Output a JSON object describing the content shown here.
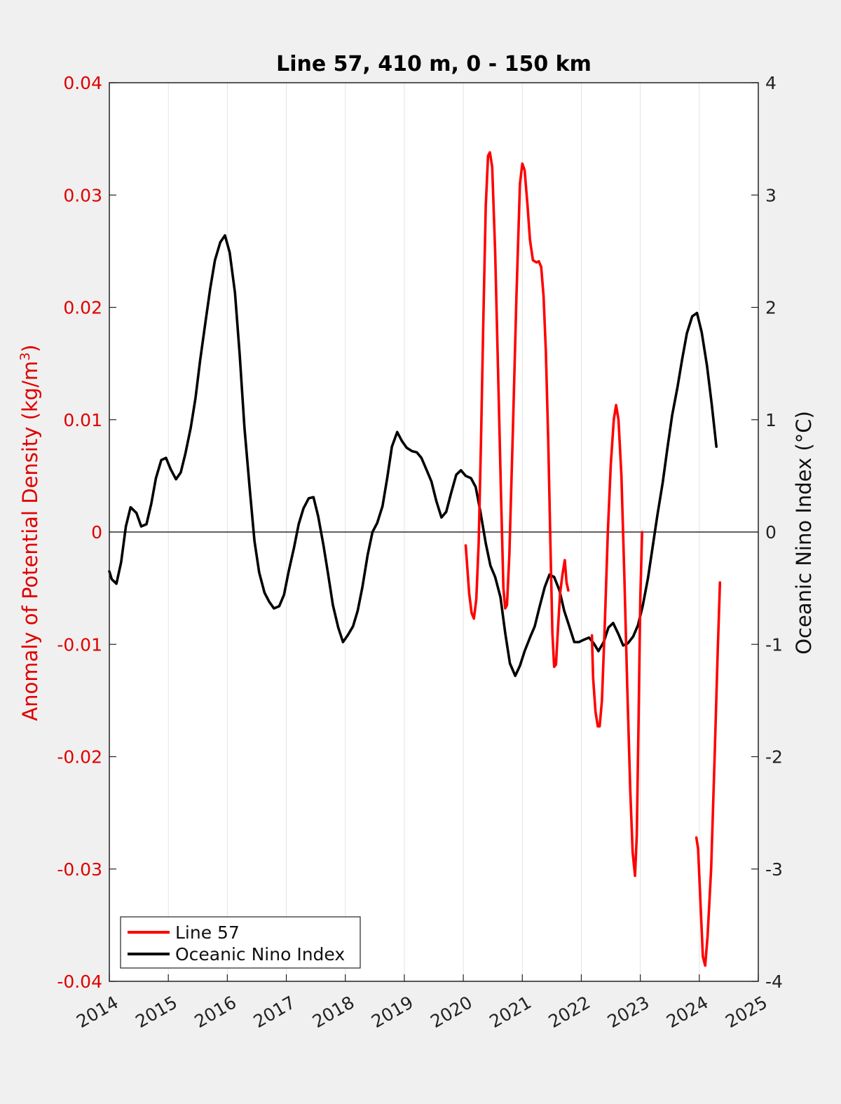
{
  "chart_data": {
    "type": "line",
    "title": "Line 57, 410 m, 0 - 150 km",
    "ylabel_left_main": "Anomaly of Potential Density (kg/m",
    "ylabel_left_sup": "3",
    "ylabel_left_end": ")",
    "ylabel_right": "Oceanic Nino Index (°C)",
    "xlim": [
      2014,
      2025
    ],
    "ylim_left": [
      -0.04,
      0.04
    ],
    "ylim_right": [
      -4,
      4
    ],
    "x_ticks": [
      "2014",
      "2015",
      "2016",
      "2017",
      "2018",
      "2019",
      "2020",
      "2021",
      "2022",
      "2023",
      "2024",
      "2025"
    ],
    "y_left_ticks": [
      "-0.04",
      "-0.03",
      "-0.02",
      "-0.01",
      "0",
      "0.01",
      "0.02",
      "0.03",
      "0.04"
    ],
    "y_right_ticks": [
      "-4",
      "-3",
      "-2",
      "-1",
      "0",
      "1",
      "2",
      "3",
      "4"
    ],
    "grid": "vertical",
    "zero_line": true,
    "legend": {
      "position": "bottom-left"
    },
    "series": [
      {
        "name": "Line 57",
        "axis": "left",
        "color": "#ff0000",
        "segments": [
          [
            [
              2020.04,
              -0.0012
            ],
            [
              2020.1,
              -0.0055
            ],
            [
              2020.14,
              -0.0072
            ],
            [
              2020.18,
              -0.0077
            ],
            [
              2020.22,
              -0.006
            ],
            [
              2020.26,
              -0.001
            ],
            [
              2020.3,
              0.008
            ],
            [
              2020.34,
              0.019
            ],
            [
              2020.38,
              0.029
            ],
            [
              2020.42,
              0.0335
            ],
            [
              2020.45,
              0.0338
            ],
            [
              2020.49,
              0.0325
            ],
            [
              2020.54,
              0.025
            ],
            [
              2020.59,
              0.014
            ],
            [
              2020.64,
              0.003
            ],
            [
              2020.68,
              -0.005
            ],
            [
              2020.71,
              -0.0068
            ],
            [
              2020.74,
              -0.0065
            ],
            [
              2020.78,
              -0.002
            ],
            [
              2020.84,
              0.009
            ],
            [
              2020.9,
              0.021
            ],
            [
              2020.96,
              0.031
            ],
            [
              2021.0,
              0.0328
            ],
            [
              2021.04,
              0.0322
            ],
            [
              2021.09,
              0.029
            ],
            [
              2021.13,
              0.026
            ],
            [
              2021.18,
              0.0242
            ],
            [
              2021.24,
              0.024
            ],
            [
              2021.28,
              0.0241
            ],
            [
              2021.32,
              0.0236
            ],
            [
              2021.36,
              0.021
            ],
            [
              2021.4,
              0.016
            ],
            [
              2021.44,
              0.008
            ],
            [
              2021.48,
              -0.002
            ],
            [
              2021.51,
              -0.009
            ],
            [
              2021.54,
              -0.012
            ],
            [
              2021.57,
              -0.0118
            ],
            [
              2021.6,
              -0.009
            ],
            [
              2021.64,
              -0.0055
            ],
            [
              2021.68,
              -0.0038
            ],
            [
              2021.72,
              -0.0025
            ],
            [
              2021.75,
              -0.0045
            ],
            [
              2021.78,
              -0.0052
            ]
          ],
          [
            [
              2022.18,
              -0.0092
            ],
            [
              2022.2,
              -0.013
            ],
            [
              2022.24,
              -0.016
            ],
            [
              2022.28,
              -0.0173
            ],
            [
              2022.31,
              -0.0173
            ],
            [
              2022.35,
              -0.015
            ],
            [
              2022.4,
              -0.008
            ],
            [
              2022.45,
              0.0
            ],
            [
              2022.5,
              0.006
            ],
            [
              2022.55,
              0.01
            ],
            [
              2022.59,
              0.0113
            ],
            [
              2022.63,
              0.01
            ],
            [
              2022.68,
              0.005
            ],
            [
              2022.73,
              -0.004
            ],
            [
              2022.78,
              -0.014
            ],
            [
              2022.83,
              -0.023
            ],
            [
              2022.87,
              -0.0285
            ],
            [
              2022.91,
              -0.0306
            ],
            [
              2022.94,
              -0.027
            ],
            [
              2022.97,
              -0.017
            ],
            [
              2023.0,
              -0.006
            ],
            [
              2023.03,
              0.0
            ]
          ],
          [
            [
              2023.95,
              -0.0272
            ],
            [
              2023.98,
              -0.0282
            ],
            [
              2024.02,
              -0.033
            ],
            [
              2024.06,
              -0.0378
            ],
            [
              2024.1,
              -0.0386
            ],
            [
              2024.14,
              -0.036
            ],
            [
              2024.2,
              -0.03
            ],
            [
              2024.26,
              -0.02
            ],
            [
              2024.31,
              -0.011
            ],
            [
              2024.35,
              -0.0045
            ]
          ]
        ]
      },
      {
        "name": "Oceanic Nino Index",
        "axis": "right",
        "color": "#000000",
        "segments": [
          [
            [
              2014.0,
              -0.35
            ],
            [
              2014.04,
              -0.42
            ],
            [
              2014.12,
              -0.46
            ],
            [
              2014.2,
              -0.27
            ],
            [
              2014.28,
              0.05
            ],
            [
              2014.36,
              0.22
            ],
            [
              2014.46,
              0.17
            ],
            [
              2014.54,
              0.05
            ],
            [
              2014.63,
              0.07
            ],
            [
              2014.71,
              0.25
            ],
            [
              2014.79,
              0.48
            ],
            [
              2014.88,
              0.64
            ],
            [
              2014.96,
              0.66
            ],
            [
              2015.04,
              0.56
            ],
            [
              2015.13,
              0.47
            ],
            [
              2015.21,
              0.53
            ],
            [
              2015.29,
              0.7
            ],
            [
              2015.38,
              0.93
            ],
            [
              2015.46,
              1.19
            ],
            [
              2015.54,
              1.53
            ],
            [
              2015.63,
              1.87
            ],
            [
              2015.71,
              2.17
            ],
            [
              2015.79,
              2.42
            ],
            [
              2015.88,
              2.58
            ],
            [
              2015.96,
              2.64
            ],
            [
              2016.04,
              2.49
            ],
            [
              2016.13,
              2.13
            ],
            [
              2016.21,
              1.58
            ],
            [
              2016.29,
              0.93
            ],
            [
              2016.38,
              0.38
            ],
            [
              2016.46,
              -0.08
            ],
            [
              2016.54,
              -0.36
            ],
            [
              2016.63,
              -0.54
            ],
            [
              2016.71,
              -0.62
            ],
            [
              2016.79,
              -0.68
            ],
            [
              2016.88,
              -0.66
            ],
            [
              2016.96,
              -0.56
            ],
            [
              2017.04,
              -0.35
            ],
            [
              2017.13,
              -0.14
            ],
            [
              2017.21,
              0.07
            ],
            [
              2017.29,
              0.21
            ],
            [
              2017.38,
              0.3
            ],
            [
              2017.46,
              0.31
            ],
            [
              2017.54,
              0.14
            ],
            [
              2017.63,
              -0.12
            ],
            [
              2017.71,
              -0.38
            ],
            [
              2017.79,
              -0.65
            ],
            [
              2017.88,
              -0.85
            ],
            [
              2017.96,
              -0.98
            ],
            [
              2018.04,
              -0.92
            ],
            [
              2018.13,
              -0.84
            ],
            [
              2018.21,
              -0.7
            ],
            [
              2018.29,
              -0.49
            ],
            [
              2018.38,
              -0.2
            ],
            [
              2018.46,
              0.0
            ],
            [
              2018.54,
              0.08
            ],
            [
              2018.63,
              0.23
            ],
            [
              2018.71,
              0.48
            ],
            [
              2018.79,
              0.76
            ],
            [
              2018.88,
              0.89
            ],
            [
              2018.96,
              0.81
            ],
            [
              2019.04,
              0.75
            ],
            [
              2019.13,
              0.72
            ],
            [
              2019.21,
              0.71
            ],
            [
              2019.29,
              0.66
            ],
            [
              2019.38,
              0.55
            ],
            [
              2019.46,
              0.45
            ],
            [
              2019.54,
              0.28
            ],
            [
              2019.63,
              0.13
            ],
            [
              2019.71,
              0.18
            ],
            [
              2019.79,
              0.34
            ],
            [
              2019.88,
              0.51
            ],
            [
              2019.96,
              0.55
            ],
            [
              2020.04,
              0.5
            ],
            [
              2020.13,
              0.48
            ],
            [
              2020.21,
              0.4
            ],
            [
              2020.29,
              0.18
            ],
            [
              2020.38,
              -0.1
            ],
            [
              2020.46,
              -0.3
            ],
            [
              2020.54,
              -0.4
            ],
            [
              2020.63,
              -0.58
            ],
            [
              2020.71,
              -0.9
            ],
            [
              2020.79,
              -1.17
            ],
            [
              2020.88,
              -1.28
            ],
            [
              2020.96,
              -1.19
            ],
            [
              2021.04,
              -1.06
            ],
            [
              2021.13,
              -0.94
            ],
            [
              2021.21,
              -0.84
            ],
            [
              2021.29,
              -0.67
            ],
            [
              2021.38,
              -0.49
            ],
            [
              2021.46,
              -0.38
            ],
            [
              2021.54,
              -0.4
            ],
            [
              2021.63,
              -0.52
            ],
            [
              2021.71,
              -0.7
            ],
            [
              2021.79,
              -0.83
            ],
            [
              2021.88,
              -0.98
            ],
            [
              2021.96,
              -0.98
            ],
            [
              2022.04,
              -0.96
            ],
            [
              2022.13,
              -0.94
            ],
            [
              2022.21,
              -0.99
            ],
            [
              2022.29,
              -1.06
            ],
            [
              2022.38,
              -0.98
            ],
            [
              2022.46,
              -0.85
            ],
            [
              2022.54,
              -0.81
            ],
            [
              2022.63,
              -0.91
            ],
            [
              2022.71,
              -1.01
            ],
            [
              2022.79,
              -0.99
            ],
            [
              2022.88,
              -0.93
            ],
            [
              2022.96,
              -0.83
            ],
            [
              2023.04,
              -0.66
            ],
            [
              2023.13,
              -0.41
            ],
            [
              2023.21,
              -0.13
            ],
            [
              2023.29,
              0.15
            ],
            [
              2023.38,
              0.44
            ],
            [
              2023.46,
              0.75
            ],
            [
              2023.54,
              1.04
            ],
            [
              2023.63,
              1.29
            ],
            [
              2023.71,
              1.54
            ],
            [
              2023.79,
              1.77
            ],
            [
              2023.88,
              1.92
            ],
            [
              2023.96,
              1.95
            ],
            [
              2024.04,
              1.78
            ],
            [
              2024.13,
              1.48
            ],
            [
              2024.21,
              1.14
            ],
            [
              2024.29,
              0.76
            ]
          ]
        ]
      }
    ]
  }
}
